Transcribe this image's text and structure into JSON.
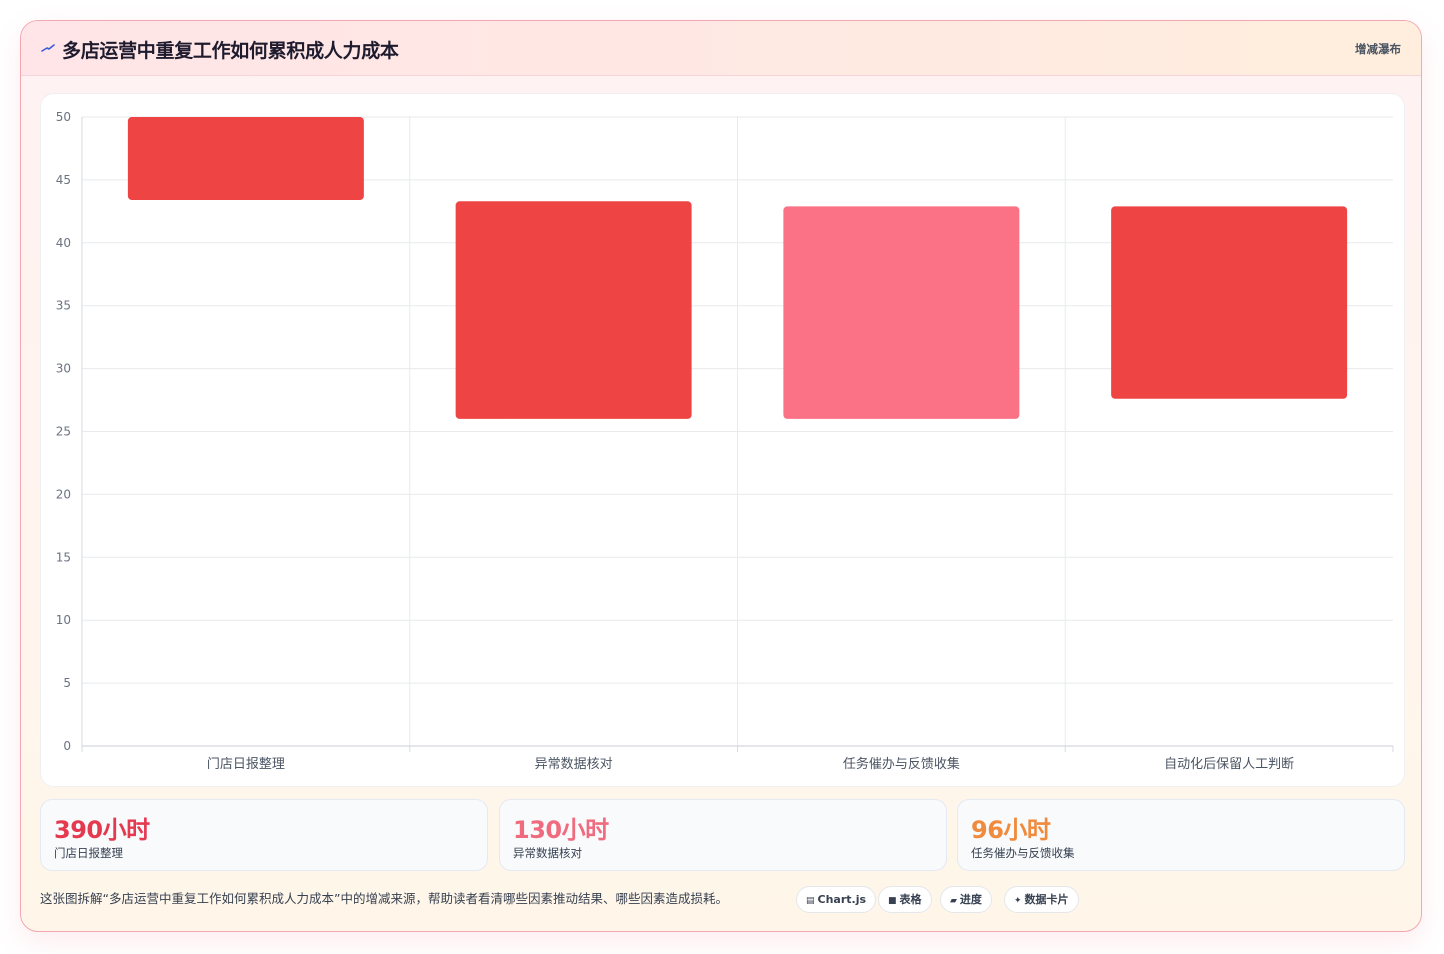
{
  "header": {
    "title": "多店运营中重复工作如何累积成人力成本",
    "badge": "增减瀑布"
  },
  "colors": {
    "bar_red": "#ef4444",
    "bar_pink": "#fb7185",
    "kpi_red": "#e53950",
    "kpi_pink": "#f06b7e",
    "kpi_orange": "#f08a3c"
  },
  "chart_data": {
    "type": "bar",
    "subtype": "floating-waterfall",
    "categories": [
      "门店日报整理",
      "异常数据核对",
      "任务催办与反馈收集",
      "自动化后保留人工判断"
    ],
    "series": [
      {
        "ranges": [
          [
            43.4,
            50
          ],
          [
            26,
            43.3
          ],
          [
            26,
            42.9
          ],
          [
            27.6,
            42.9
          ]
        ],
        "colors": [
          "#ef4444",
          "#ef4444",
          "#fb7185",
          "#ef4444"
        ]
      }
    ],
    "ylim": [
      0,
      50
    ],
    "yticks": [
      0,
      5,
      10,
      15,
      20,
      25,
      30,
      35,
      40,
      45,
      50
    ],
    "grid": true,
    "xlabel": "",
    "ylabel": ""
  },
  "kpis": [
    {
      "value": "390小时",
      "label": "门店日报整理",
      "color": "#e53950"
    },
    {
      "value": "130小时",
      "label": "异常数据核对",
      "color": "#f06b7e"
    },
    {
      "value": "96小时",
      "label": "任务催办与反馈收集",
      "color": "#f08a3c"
    }
  ],
  "footer": {
    "description": "这张图拆解“多店运营中重复工作如何累积成人力成本”中的增减来源，帮助读者看清哪些因素推动结果、哪些因素造成损耗。",
    "chips": [
      {
        "icon": "chart-icon",
        "label": "Chart.js"
      },
      {
        "icon": "table-icon",
        "label": "表格"
      },
      {
        "icon": "progress-icon",
        "label": "进度"
      },
      {
        "icon": "sparkle-icon",
        "label": "数据卡片"
      }
    ]
  }
}
